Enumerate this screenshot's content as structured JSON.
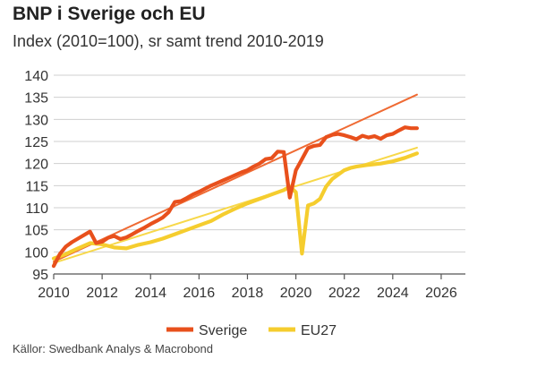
{
  "header": {
    "title": "BNP i Sverige och EU",
    "subtitle": "Index (2010=100), sr samt trend 2010-2019"
  },
  "footer": {
    "source": "Källor: Swedbank Analys & Macrobond"
  },
  "colors": {
    "sverige": "#e8501c",
    "eu27": "#f5cd2e",
    "sverige_trend": "#ef6a33",
    "eu27_trend": "#f7d84a",
    "grid": "#cfcfcf",
    "axis": "#555555"
  },
  "chart_data": {
    "type": "line",
    "title": "BNP i Sverige och EU",
    "subtitle": "Index (2010=100), sr samt trend 2010-2019",
    "xlim": [
      2010,
      2027
    ],
    "ylim": [
      95,
      140
    ],
    "xticks": [
      2010,
      2012,
      2014,
      2016,
      2018,
      2020,
      2022,
      2024,
      2026
    ],
    "yticks": [
      95,
      100,
      105,
      110,
      115,
      120,
      125,
      130,
      135,
      140
    ],
    "grid": true,
    "legend_position": "bottom",
    "series": [
      {
        "name": "Sverige",
        "x": [
          2010.0,
          2010.25,
          2010.5,
          2010.75,
          2011.0,
          2011.25,
          2011.5,
          2011.75,
          2012.0,
          2012.25,
          2012.5,
          2012.75,
          2013.0,
          2013.25,
          2013.5,
          2013.75,
          2014.0,
          2014.25,
          2014.5,
          2014.75,
          2015.0,
          2015.25,
          2015.5,
          2015.75,
          2016.0,
          2016.25,
          2016.5,
          2016.75,
          2017.0,
          2017.25,
          2017.5,
          2017.75,
          2018.0,
          2018.25,
          2018.5,
          2018.75,
          2019.0,
          2019.25,
          2019.5,
          2019.75,
          2020.0,
          2020.25,
          2020.5,
          2020.75,
          2021.0,
          2021.25,
          2021.5,
          2021.75,
          2022.0,
          2022.25,
          2022.5,
          2022.75,
          2023.0,
          2023.25,
          2023.5,
          2023.75,
          2024.0,
          2024.25,
          2024.5,
          2024.75,
          2025.0
        ],
        "values": [
          96.8,
          99.5,
          101.2,
          102.2,
          103.0,
          103.8,
          104.6,
          102.0,
          102.3,
          103.2,
          103.6,
          102.9,
          103.3,
          104.0,
          104.8,
          105.5,
          106.3,
          107.0,
          107.8,
          109.0,
          111.3,
          111.5,
          112.2,
          113.0,
          113.6,
          114.3,
          115.0,
          115.6,
          116.2,
          116.8,
          117.4,
          118.0,
          118.5,
          119.3,
          120.0,
          121.0,
          121.2,
          122.7,
          122.6,
          112.3,
          118.5,
          121.0,
          123.5,
          124.0,
          124.2,
          126.0,
          126.5,
          126.7,
          126.4,
          126.0,
          125.5,
          126.3,
          125.9,
          126.2,
          125.6,
          126.4,
          126.7,
          127.5,
          128.2,
          128.0,
          128.0
        ],
        "color": "#e8501c"
      },
      {
        "name": "EU27",
        "x": [
          2010.0,
          2010.5,
          2011.0,
          2011.5,
          2012.0,
          2012.5,
          2013.0,
          2013.5,
          2014.0,
          2014.5,
          2015.0,
          2015.5,
          2016.0,
          2016.5,
          2017.0,
          2017.5,
          2018.0,
          2018.5,
          2019.0,
          2019.5,
          2019.75,
          2020.0,
          2020.25,
          2020.5,
          2020.75,
          2021.0,
          2021.25,
          2021.5,
          2021.75,
          2022.0,
          2022.25,
          2022.5,
          2022.75,
          2023.0,
          2023.5,
          2024.0,
          2024.5,
          2025.0
        ],
        "values": [
          98.5,
          99.5,
          100.8,
          102.0,
          101.7,
          101.0,
          100.8,
          101.6,
          102.2,
          103.0,
          104.0,
          105.0,
          106.0,
          107.0,
          108.5,
          109.8,
          111.0,
          112.0,
          113.0,
          114.0,
          114.8,
          113.5,
          99.6,
          110.5,
          111.0,
          112.0,
          114.8,
          116.5,
          117.5,
          118.5,
          119.0,
          119.3,
          119.5,
          119.7,
          120.0,
          120.5,
          121.3,
          122.3
        ],
        "color": "#f5cd2e"
      },
      {
        "name": "",
        "x": [
          2010.0,
          2025.0
        ],
        "values": [
          97.8,
          135.6
        ],
        "color": "#ef6a33",
        "style": "trend"
      },
      {
        "name": "",
        "x": [
          2010.0,
          2025.0
        ],
        "values": [
          97.5,
          123.6
        ],
        "color": "#f7d84a",
        "style": "trend"
      }
    ]
  }
}
